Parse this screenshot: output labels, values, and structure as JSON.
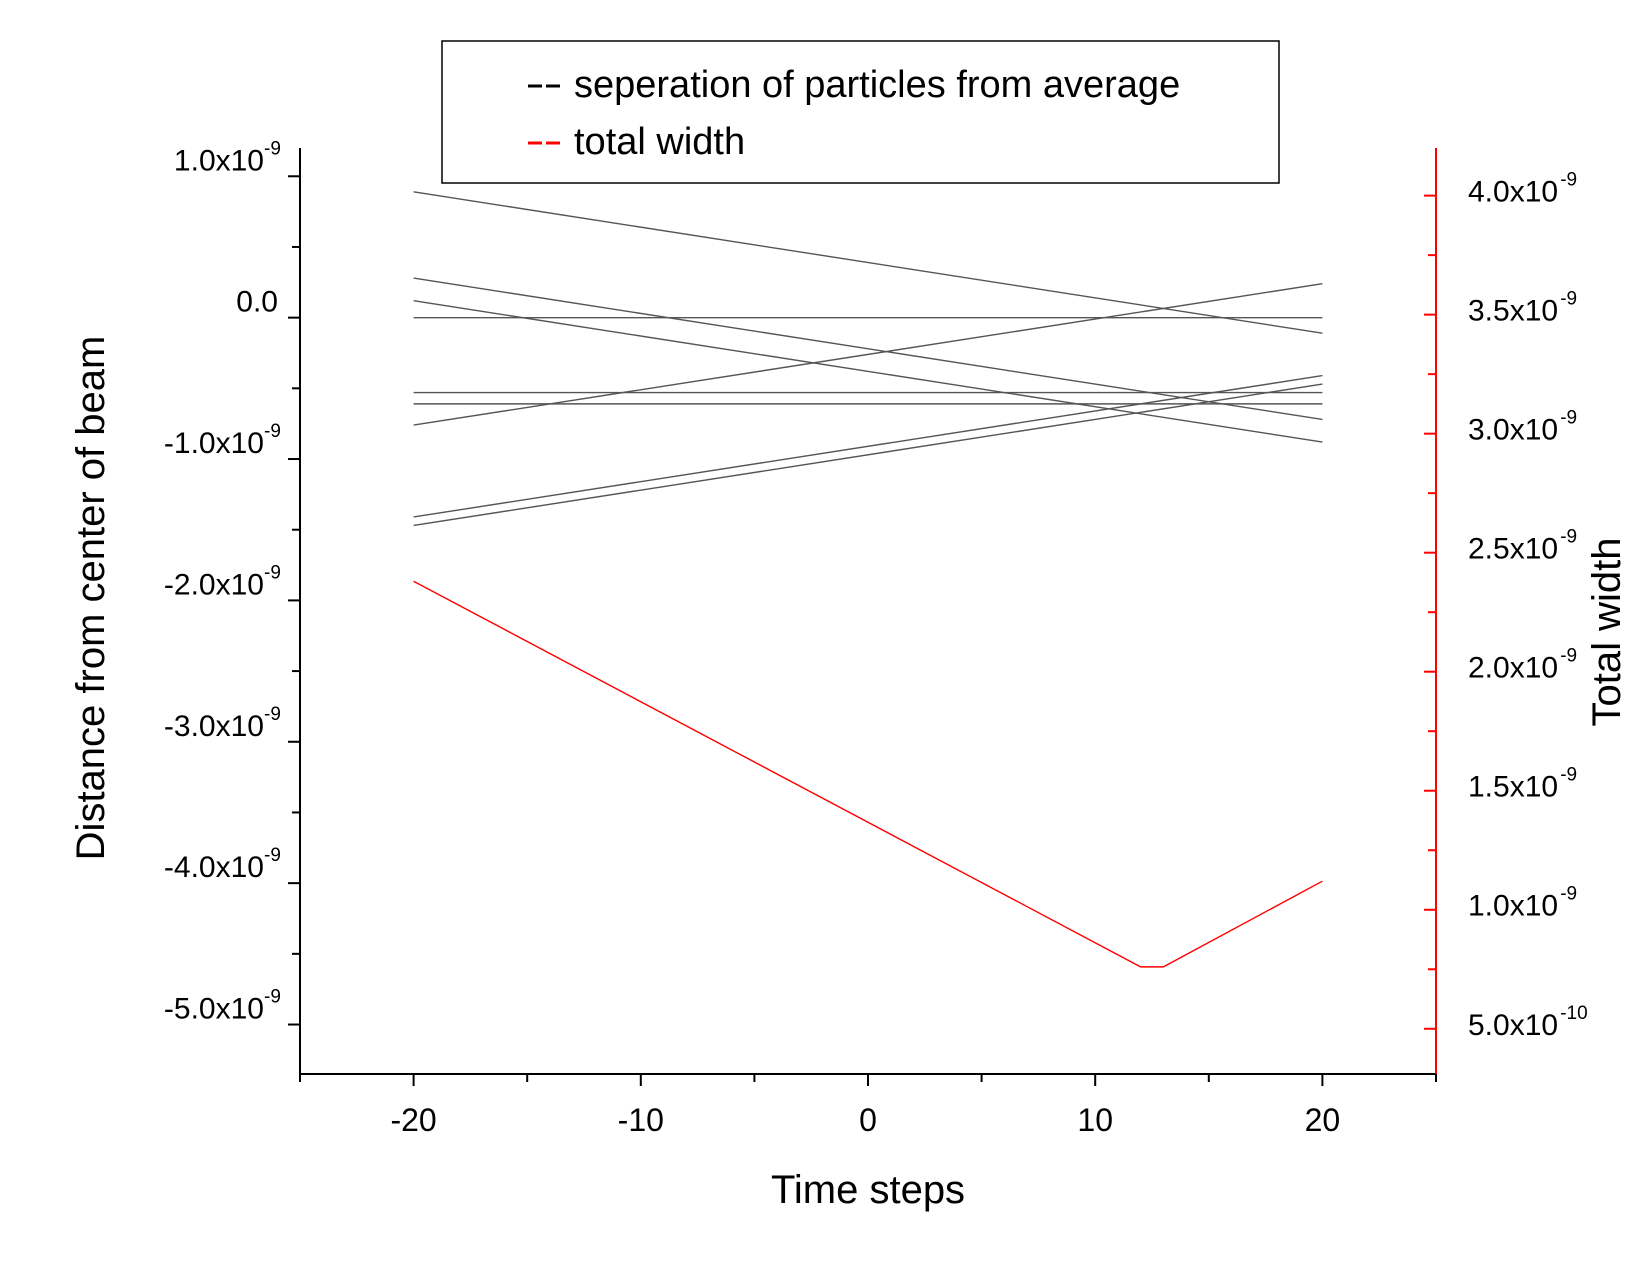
{
  "chart_data": {
    "type": "line",
    "xlabel": "Time steps",
    "ylabel": "Distance from center of beam",
    "y2label": "Total width",
    "xlim": [
      -25,
      25
    ],
    "ylim": [
      -5.35e-09,
      1.2e-09
    ],
    "y2lim": [
      3.1e-10,
      4.2e-09
    ],
    "x_ticks": [
      {
        "value": -20,
        "label": "-20"
      },
      {
        "value": -10,
        "label": "-10"
      },
      {
        "value": 0,
        "label": "0"
      },
      {
        "value": 10,
        "label": "10"
      },
      {
        "value": 20,
        "label": "20"
      }
    ],
    "y_ticks": [
      {
        "value": 1e-09,
        "mant": "1.0x10",
        "exp": "-9"
      },
      {
        "value": 0,
        "mant": "0.0",
        "exp": ""
      },
      {
        "value": -1e-09,
        "mant": "-1.0x10",
        "exp": "-9"
      },
      {
        "value": -2e-09,
        "mant": "-2.0x10",
        "exp": "-9"
      },
      {
        "value": -3e-09,
        "mant": "-3.0x10",
        "exp": "-9"
      },
      {
        "value": -4e-09,
        "mant": "-4.0x10",
        "exp": "-9"
      },
      {
        "value": -5e-09,
        "mant": "-5.0x10",
        "exp": "-9"
      }
    ],
    "y2_ticks": [
      {
        "value": 4e-09,
        "mant": "4.0x10",
        "exp": "-9"
      },
      {
        "value": 3.5e-09,
        "mant": "3.5x10",
        "exp": "-9"
      },
      {
        "value": 3e-09,
        "mant": "3.0x10",
        "exp": "-9"
      },
      {
        "value": 2.5e-09,
        "mant": "2.5x10",
        "exp": "-9"
      },
      {
        "value": 2e-09,
        "mant": "2.0x10",
        "exp": "-9"
      },
      {
        "value": 1.5e-09,
        "mant": "1.5x10",
        "exp": "-9"
      },
      {
        "value": 1e-09,
        "mant": "1.0x10",
        "exp": "-9"
      },
      {
        "value": 5e-10,
        "mant": "5.0x10",
        "exp": "-10"
      }
    ],
    "legend": {
      "placement": "top-center",
      "entries": [
        {
          "label": "seperation of particles from average",
          "color": "#000000"
        },
        {
          "label": "total width",
          "color": "#ff0000"
        }
      ]
    },
    "colors": {
      "particles": "#555555",
      "width": "#ff0000",
      "right_axis": "#ff0000",
      "axes": "#000000"
    },
    "particle_series": [
      {
        "x": [
          -20,
          20
        ],
        "y": [
          8.9e-10,
          -1.1e-10
        ]
      },
      {
        "x": [
          -20,
          20
        ],
        "y": [
          2.8e-10,
          -7.2e-10
        ]
      },
      {
        "x": [
          -20,
          20
        ],
        "y": [
          1.2e-10,
          -8.8e-10
        ]
      },
      {
        "x": [
          -20,
          20
        ],
        "y": [
          0.0,
          0.0
        ]
      },
      {
        "x": [
          -20,
          20
        ],
        "y": [
          -5.3e-10,
          -5.3e-10
        ]
      },
      {
        "x": [
          -20,
          20
        ],
        "y": [
          -6.1e-10,
          -6.1e-10
        ]
      },
      {
        "x": [
          -20,
          20
        ],
        "y": [
          -7.6e-10,
          2.4e-10
        ]
      },
      {
        "x": [
          -20,
          20
        ],
        "y": [
          -1.41e-09,
          -4.1e-10
        ]
      },
      {
        "x": [
          -20,
          20
        ],
        "y": [
          -1.47e-09,
          -4.7e-10
        ]
      }
    ],
    "width_series": {
      "x": [
        -20,
        12,
        13,
        20
      ],
      "y": [
        2.38e-09,
        7.6e-10,
        7.6e-10,
        1.12e-09
      ]
    }
  }
}
